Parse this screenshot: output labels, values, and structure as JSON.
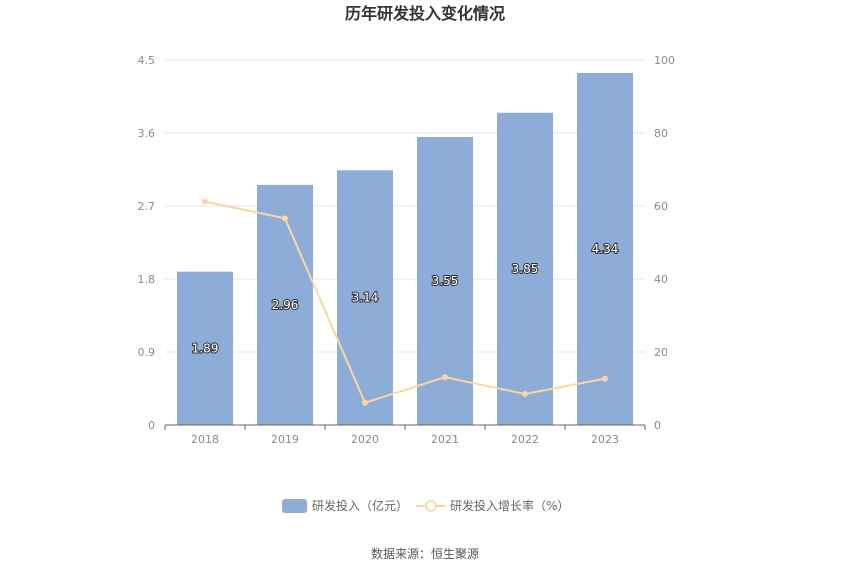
{
  "chart_data": {
    "type": "bar",
    "title": "历年研发投入变化情况",
    "categories": [
      "2018",
      "2019",
      "2020",
      "2021",
      "2022",
      "2023"
    ],
    "series": [
      {
        "name": "研发投入（亿元）",
        "type": "bar",
        "axis": "left",
        "color": "#8eacd8",
        "values": [
          1.89,
          2.96,
          3.14,
          3.55,
          3.85,
          4.34
        ]
      },
      {
        "name": "研发投入增长率（%）",
        "type": "line",
        "axis": "right",
        "color": "#f8d89e",
        "values": [
          61.2,
          56.6,
          6.1,
          13.1,
          8.5,
          12.7
        ]
      }
    ],
    "y_left": {
      "ylim": [
        0,
        4.5
      ],
      "ticks": [
        "0",
        "0.9",
        "1.8",
        "2.7",
        "3.6",
        "4.5"
      ]
    },
    "y_right": {
      "ylim": [
        0,
        100
      ],
      "ticks": [
        "0",
        "20",
        "40",
        "60",
        "80",
        "100"
      ]
    },
    "data_labels": [
      "1.89",
      "2.96",
      "3.14",
      "3.55",
      "3.85",
      "4.34"
    ],
    "grid": true,
    "legend_position": "bottom"
  },
  "source_text": "数据来源：恒生聚源"
}
